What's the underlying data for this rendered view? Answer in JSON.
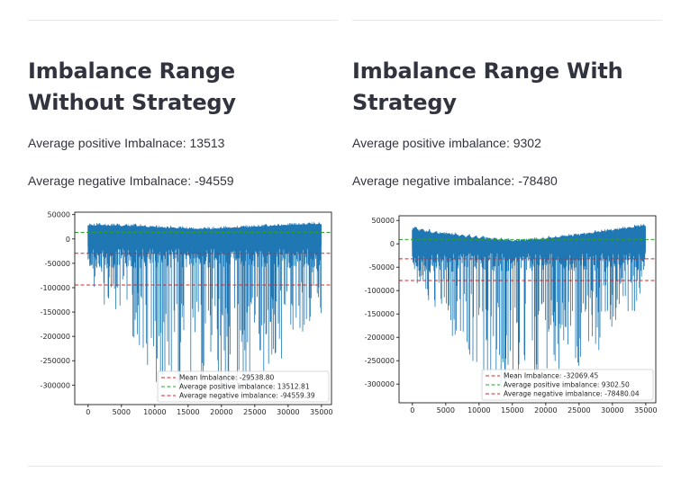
{
  "left": {
    "title": "Imbalance Range Without Strategy",
    "stats": [
      "Average positive Imbalnace: 13513",
      "Average negative Imbalnace: -94559"
    ]
  },
  "right": {
    "title": "Imbalance Range With Strategy",
    "stats": [
      "Average positive imbalance: 9302",
      "Average negative imbalance: -78480"
    ]
  },
  "chart_data": [
    {
      "type": "line",
      "title": "",
      "xlabel": "",
      "ylabel": "",
      "xlim": [
        -2000,
        36500
      ],
      "ylim": [
        -340000,
        55000
      ],
      "xticks": [
        0,
        5000,
        10000,
        15000,
        20000,
        25000,
        30000,
        35000
      ],
      "yticks": [
        50000,
        0,
        -50000,
        -100000,
        -150000,
        -200000,
        -250000,
        -300000
      ],
      "series_color": "#1f77b4",
      "series": [
        {
          "name": "",
          "x": [
            0,
            500,
            1000,
            1500,
            2000,
            2500,
            3000,
            3500,
            4000,
            4500,
            5000,
            5500,
            6000,
            6500,
            7000,
            7500,
            8000,
            8500,
            9000,
            9500,
            10000,
            10500,
            11000,
            11500,
            12000,
            12500,
            13000,
            13500,
            14000,
            14500,
            15000,
            15500,
            16000,
            16500,
            17000,
            17500,
            18000,
            18500,
            19000,
            19500,
            20000,
            20500,
            21000,
            21500,
            22000,
            22500,
            23000,
            23500,
            24000,
            24500,
            25000,
            25500,
            26000,
            26500,
            27000,
            27500,
            28000,
            28500,
            29000,
            29500,
            30000,
            30500,
            31000,
            31500,
            32000,
            32500,
            33000,
            33500,
            34000,
            34500,
            35000
          ],
          "high": [
            32000,
            33000,
            31000,
            34000,
            32000,
            33000,
            30000,
            32000,
            31000,
            33000,
            30000,
            32000,
            31000,
            30000,
            32000,
            29000,
            31000,
            30000,
            28000,
            30000,
            29000,
            27000,
            28000,
            27000,
            26000,
            28000,
            27000,
            25000,
            27000,
            26000,
            25000,
            26000,
            24000,
            25000,
            24000,
            26000,
            25000,
            24000,
            26000,
            25000,
            26000,
            27000,
            26000,
            27000,
            28000,
            27000,
            28000,
            29000,
            28000,
            29000,
            30000,
            29000,
            30000,
            31000,
            30000,
            31000,
            32000,
            31000,
            32000,
            33000,
            32000,
            33000,
            34000,
            33000,
            34000,
            33000,
            34000,
            35000,
            34000,
            35000,
            34000
          ],
          "low": [
            -60000,
            -130000,
            -90000,
            -150000,
            -110000,
            -170000,
            -120000,
            -160000,
            -190000,
            -140000,
            -200000,
            -170000,
            -230000,
            -190000,
            -250000,
            -210000,
            -270000,
            -240000,
            -300000,
            -260000,
            -310000,
            -280000,
            -320000,
            -290000,
            -315000,
            -300000,
            -320000,
            -305000,
            -318000,
            -300000,
            -312000,
            -295000,
            -316000,
            -300000,
            -320000,
            -298000,
            -312000,
            -296000,
            -318000,
            -300000,
            -320000,
            -302000,
            -316000,
            -298000,
            -314000,
            -300000,
            -320000,
            -304000,
            -316000,
            -298000,
            -310000,
            -292000,
            -300000,
            -282000,
            -290000,
            -270000,
            -278000,
            -255000,
            -262000,
            -240000,
            -245000,
            -220000,
            -225000,
            -200000,
            -205000,
            -180000,
            -185000,
            -160000,
            -165000,
            -140000,
            -175000
          ]
        }
      ],
      "lines": [
        {
          "label": "Mean Imbalance: -29538.80",
          "y": -29538.8,
          "color": "#d62728"
        },
        {
          "label": "Average positive imbalance: 13512.81",
          "y": 13512.81,
          "color": "#2ca02c"
        },
        {
          "label": "Average negative imbalance: -94559.39",
          "y": -94559.39,
          "color": "#d62728"
        }
      ],
      "legend_position": "lower-right"
    },
    {
      "type": "line",
      "title": "",
      "xlabel": "",
      "ylabel": "",
      "xlim": [
        -2000,
        36500
      ],
      "ylim": [
        -340000,
        60000
      ],
      "xticks": [
        0,
        5000,
        10000,
        15000,
        20000,
        25000,
        30000,
        35000
      ],
      "yticks": [
        50000,
        0,
        -50000,
        -100000,
        -150000,
        -200000,
        -250000,
        -300000
      ],
      "series_color": "#1f77b4",
      "series": [
        {
          "name": "",
          "x": [
            0,
            500,
            1000,
            1500,
            2000,
            2500,
            3000,
            3500,
            4000,
            4500,
            5000,
            5500,
            6000,
            6500,
            7000,
            7500,
            8000,
            8500,
            9000,
            9500,
            10000,
            10500,
            11000,
            11500,
            12000,
            12500,
            13000,
            13500,
            14000,
            14500,
            15000,
            15500,
            16000,
            16500,
            17000,
            17500,
            18000,
            18500,
            19000,
            19500,
            20000,
            20500,
            21000,
            21500,
            22000,
            22500,
            23000,
            23500,
            24000,
            24500,
            25000,
            25500,
            26000,
            26500,
            27000,
            27500,
            28000,
            28500,
            29000,
            29500,
            30000,
            30500,
            31000,
            31500,
            32000,
            32500,
            33000,
            33500,
            34000,
            34500,
            35000
          ],
          "high": [
            34000,
            40000,
            30000,
            36000,
            28000,
            32000,
            26000,
            30000,
            25000,
            28000,
            24000,
            27000,
            22000,
            25000,
            20000,
            24000,
            18000,
            22000,
            16000,
            20000,
            15000,
            19000,
            14000,
            17000,
            12000,
            16000,
            11000,
            14000,
            10000,
            13000,
            9000,
            12000,
            10000,
            13000,
            11000,
            14000,
            12000,
            15000,
            13000,
            16000,
            14000,
            18000,
            16000,
            19000,
            17000,
            21000,
            19000,
            22000,
            20000,
            24000,
            22000,
            26000,
            24000,
            28000,
            26000,
            30000,
            28000,
            32000,
            30000,
            34000,
            32000,
            36000,
            34000,
            38000,
            36000,
            40000,
            38000,
            42000,
            40000,
            44000,
            42000
          ],
          "low": [
            -50000,
            -110000,
            -80000,
            -130000,
            -100000,
            -150000,
            -110000,
            -160000,
            -180000,
            -140000,
            -190000,
            -170000,
            -220000,
            -190000,
            -240000,
            -200000,
            -260000,
            -230000,
            -280000,
            -250000,
            -300000,
            -270000,
            -310000,
            -280000,
            -315000,
            -290000,
            -318000,
            -300000,
            -312000,
            -290000,
            -305000,
            -285000,
            -310000,
            -290000,
            -312000,
            -288000,
            -300000,
            -280000,
            -305000,
            -282000,
            -300000,
            -278000,
            -296000,
            -275000,
            -290000,
            -268000,
            -285000,
            -262000,
            -278000,
            -255000,
            -270000,
            -245000,
            -260000,
            -235000,
            -248000,
            -222000,
            -235000,
            -210000,
            -220000,
            -195000,
            -205000,
            -180000,
            -190000,
            -165000,
            -172000,
            -150000,
            -158000,
            -136000,
            -144000,
            -122000,
            -180000
          ]
        }
      ],
      "lines": [
        {
          "label": "Mean Imbalance: -32069.45",
          "y": -32069.45,
          "color": "#d62728"
        },
        {
          "label": "Average positive imbalance: 9302.50",
          "y": 9302.5,
          "color": "#2ca02c"
        },
        {
          "label": "Average negative imbalance: -78480.04",
          "y": -78480.04,
          "color": "#d62728"
        }
      ],
      "legend_position": "lower-right"
    }
  ]
}
